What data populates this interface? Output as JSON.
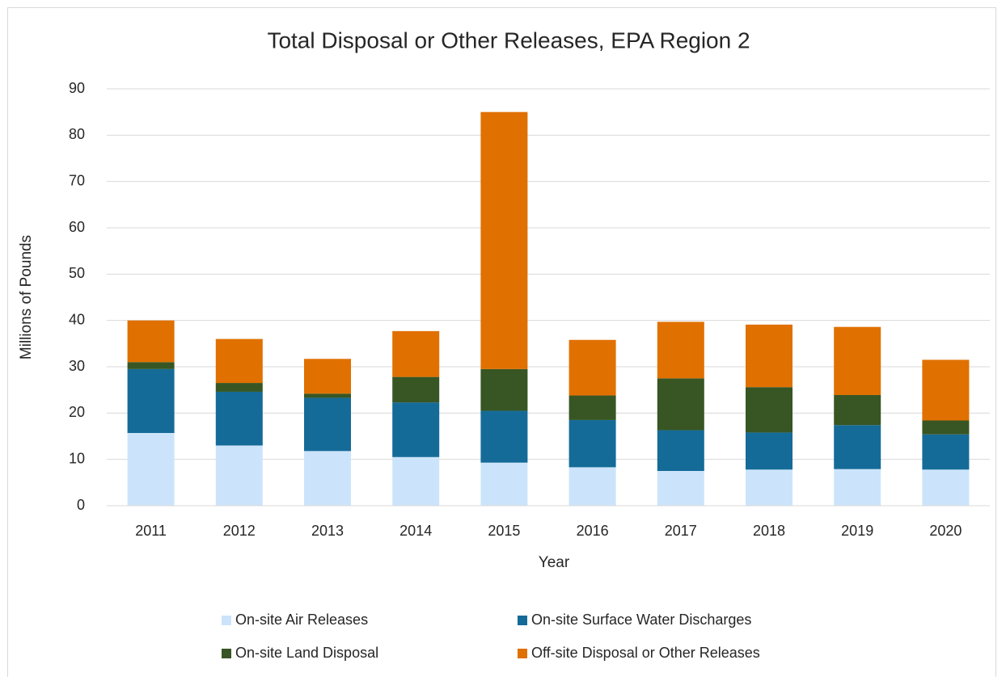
{
  "chart_data": {
    "type": "stacked_bar",
    "title": "Total Disposal or Other Releases, EPA Region 2",
    "x_label": "Year",
    "y_label": "Millions of Pounds",
    "categories": [
      "2011",
      "2012",
      "2013",
      "2014",
      "2015",
      "2016",
      "2017",
      "2018",
      "2019",
      "2020"
    ],
    "series": [
      {
        "name": "On-site Air Releases",
        "color": "#cce4fb",
        "values": [
          15.7,
          13,
          11.8,
          10.5,
          9.3,
          8.3,
          7.5,
          7.8,
          7.9,
          7.8
        ]
      },
      {
        "name": "On-site Surface Water Discharges",
        "color": "#156b98",
        "values": [
          13.8,
          11.6,
          11.5,
          11.8,
          11.2,
          10.2,
          8.8,
          8,
          9.5,
          7.6
        ]
      },
      {
        "name": "On-site Land Disposal",
        "color": "#375623",
        "values": [
          1.5,
          1.9,
          0.9,
          5.5,
          9,
          5.3,
          11.2,
          9.8,
          6.5,
          3
        ]
      },
      {
        "name": "Off-site Disposal or Other Releases",
        "color": "#e07000",
        "values": [
          9,
          9.5,
          7.5,
          9.9,
          55.5,
          12,
          12.2,
          13.5,
          14.7,
          13.1
        ]
      }
    ],
    "ylim": [
      0,
      90
    ],
    "yticks": [
      0,
      10,
      20,
      30,
      40,
      50,
      60,
      70,
      80,
      90
    ],
    "grid": true
  }
}
